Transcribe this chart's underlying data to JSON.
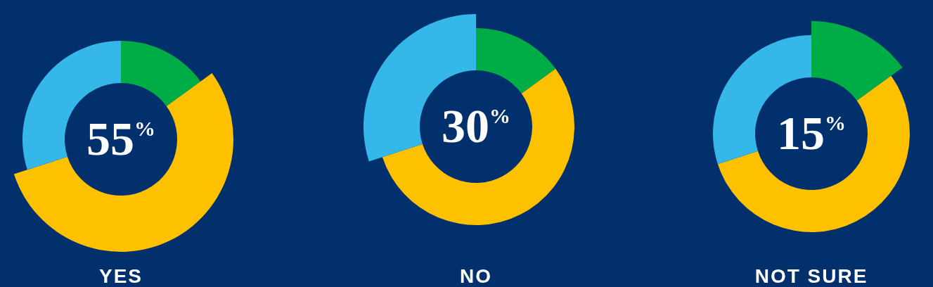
{
  "chart_data": [
    {
      "type": "donut",
      "title": "YES",
      "annotations": [
        "55$^{%}$"
      ],
      "categories": [
        null,
        null,
        null
      ],
      "values": [
        15,
        55,
        30
      ],
      "colors": [
        "#00ac45",
        "#fdc100",
        "#35b8e9"
      ],
      "legend": false
    },
    {
      "type": "donut",
      "title": "NO",
      "annotations": [
        "30$^{%}$"
      ],
      "categories": [
        null,
        null,
        null
      ],
      "values": [
        15,
        55,
        30
      ],
      "colors": [
        "#00ac45",
        "#fdc100",
        "#35b8e9"
      ],
      "legend": false
    },
    {
      "type": "donut",
      "title": "NOT SURE",
      "annotations": [
        "15$^{%}$"
      ],
      "categories": [
        null,
        null,
        null
      ],
      "values": [
        15,
        55,
        30
      ],
      "colors": [
        "#00ac45",
        "#fdc100",
        "#35b8e9"
      ],
      "legend": false
    }
  ]
}
